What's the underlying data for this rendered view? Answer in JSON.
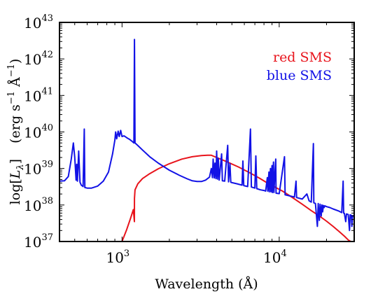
{
  "chart_data": {
    "type": "line",
    "title": "",
    "xlabel": "Wavelength (Å)",
    "ylabel": "log[L_λ]   (erg s⁻¹ Å⁻¹)",
    "ylabel_parts": {
      "main": "log[",
      "L": "L",
      "sub": "λ",
      "close": "]",
      "units": "(erg s",
      "exp1": "−1",
      "angstrom": " Å",
      "exp2": "−1",
      "units_close": ")"
    },
    "x_scale": "log",
    "y_scale": "log",
    "xlim": [
      400,
      30000
    ],
    "ylim": [
      1e+37,
      1e+43
    ],
    "x_ticks": [
      {
        "value": 1000,
        "base": "10",
        "exp": "3"
      },
      {
        "value": 10000,
        "base": "10",
        "exp": "4"
      }
    ],
    "y_ticks": [
      {
        "value": 1e+37,
        "base": "10",
        "exp": "37"
      },
      {
        "value": 1e+38,
        "base": "10",
        "exp": "38"
      },
      {
        "value": 1e+39,
        "base": "10",
        "exp": "39"
      },
      {
        "value": 1e+40,
        "base": "10",
        "exp": "40"
      },
      {
        "value": 1e+41,
        "base": "10",
        "exp": "41"
      },
      {
        "value": 1e+42,
        "base": "10",
        "exp": "42"
      },
      {
        "value": 1e+43,
        "base": "10",
        "exp": "43"
      }
    ],
    "grid": false,
    "legend_position": "top-right",
    "series": [
      {
        "name": "red SMS",
        "color": "#e8141c",
        "points": [
          [
            1000,
            1e+37
          ],
          [
            1070,
            2.1e+37
          ],
          [
            1130,
            4.2e+37
          ],
          [
            1180,
            7.5e+37
          ],
          [
            1198,
            3.5e+37
          ],
          [
            1200,
            1.5e+38
          ],
          [
            1210,
            2.6e+38
          ],
          [
            1260,
            3.8e+38
          ],
          [
            1350,
            5.3e+38
          ],
          [
            1500,
            7.2e+38
          ],
          [
            1700,
            9.8e+38
          ],
          [
            2000,
            1.35e+39
          ],
          [
            2400,
            1.8e+39
          ],
          [
            2800,
            2.1e+39
          ],
          [
            3200,
            2.25e+39
          ],
          [
            3500,
            2.3e+39
          ],
          [
            3700,
            2.3e+39
          ],
          [
            4000,
            2e+39
          ],
          [
            4600,
            1.55e+39
          ],
          [
            5500,
            1.1e+39
          ],
          [
            6500,
            7.6e+38
          ],
          [
            7500,
            5.4e+38
          ],
          [
            8500,
            3.9e+38
          ],
          [
            9500,
            3e+38
          ],
          [
            10500,
            2.4e+38
          ],
          [
            12000,
            1.65e+38
          ],
          [
            14000,
            1.05e+38
          ],
          [
            16000,
            7e+37
          ],
          [
            18000,
            5e+37
          ],
          [
            20000,
            3.6e+37
          ],
          [
            22000,
            2.6e+37
          ],
          [
            24000,
            1.9e+37
          ],
          [
            26000,
            1.4e+37
          ],
          [
            27500,
            1.1e+37
          ],
          [
            28500,
            1e+37
          ]
        ]
      },
      {
        "name": "blue SMS",
        "color": "#1212e6",
        "points": [
          [
            400,
            4.5e+38
          ],
          [
            430,
            4.6e+38
          ],
          [
            455,
            6e+38
          ],
          [
            475,
            1.8e+39
          ],
          [
            490,
            5e+39
          ],
          [
            500,
            2e+39
          ],
          [
            510,
            4.8e+38
          ],
          [
            515,
            1.3e+39
          ],
          [
            520,
            4.5e+38
          ],
          [
            530,
            3e+39
          ],
          [
            540,
            4.2e+38
          ],
          [
            550,
            3.5e+38
          ],
          [
            565,
            3.2e+38
          ],
          [
            575,
            1.2e+40
          ],
          [
            580,
            3e+38
          ],
          [
            600,
            2.9e+38
          ],
          [
            640,
            2.9e+38
          ],
          [
            700,
            3.3e+38
          ],
          [
            760,
            4.5e+38
          ],
          [
            820,
            8e+38
          ],
          [
            870,
            2.5e+39
          ],
          [
            900,
            6e+39
          ],
          [
            910,
            1e+40
          ],
          [
            925,
            6.5e+39
          ],
          [
            945,
            1.05e+40
          ],
          [
            960,
            7.5e+39
          ],
          [
            980,
            1.1e+40
          ],
          [
            1000,
            7.5e+39
          ],
          [
            1030,
            7.8e+39
          ],
          [
            1070,
            7e+39
          ],
          [
            1100,
            6.5e+39
          ],
          [
            1120,
            6.2e+39
          ],
          [
            1160,
            5.5e+39
          ],
          [
            1190,
            5e+39
          ],
          [
            1200,
            3.4e+42
          ],
          [
            1210,
            5e+39
          ],
          [
            1250,
            4.4e+39
          ],
          [
            1350,
            3.2e+39
          ],
          [
            1500,
            2.1e+39
          ],
          [
            1700,
            1.4e+39
          ],
          [
            2000,
            9e+38
          ],
          [
            2300,
            6.6e+38
          ],
          [
            2600,
            5.2e+38
          ],
          [
            2800,
            4.6e+38
          ],
          [
            3000,
            4.4e+38
          ],
          [
            3200,
            4.4e+38
          ],
          [
            3400,
            4.8e+38
          ],
          [
            3600,
            5.8e+38
          ],
          [
            3700,
            1e+39
          ],
          [
            3760,
            5.6e+38
          ],
          [
            3800,
            1.8e+39
          ],
          [
            3860,
            5.5e+38
          ],
          [
            3900,
            1.4e+39
          ],
          [
            3960,
            5.3e+38
          ],
          [
            4000,
            3e+39
          ],
          [
            4050,
            5.1e+38
          ],
          [
            4100,
            1.9e+39
          ],
          [
            4150,
            4.8e+38
          ],
          [
            4300,
            2.5e+39
          ],
          [
            4350,
            4.6e+38
          ],
          [
            4500,
            4.5e+38
          ],
          [
            4700,
            4.3e+39
          ],
          [
            4760,
            4.3e+38
          ],
          [
            4861,
            1.35e+39
          ],
          [
            4920,
            4.2e+38
          ],
          [
            5000,
            4.1e+38
          ],
          [
            5400,
            3.8e+38
          ],
          [
            5800,
            3.5e+38
          ],
          [
            5875,
            1.6e+39
          ],
          [
            5950,
            3.4e+38
          ],
          [
            6300,
            3.2e+38
          ],
          [
            6563,
            1.2e+40
          ],
          [
            6650,
            3.1e+38
          ],
          [
            7000,
            2.9e+38
          ],
          [
            7100,
            2.2e+39
          ],
          [
            7200,
            2.8e+38
          ],
          [
            7600,
            2.6e+38
          ],
          [
            8000,
            2.5e+38
          ],
          [
            8200,
            2.4e+38
          ],
          [
            8400,
            5.6e+38
          ],
          [
            8450,
            2.4e+38
          ],
          [
            8600,
            8e+38
          ],
          [
            8650,
            2.3e+38
          ],
          [
            8800,
            1e+39
          ],
          [
            8850,
            2.3e+38
          ],
          [
            9000,
            1.2e+39
          ],
          [
            9050,
            2.2e+38
          ],
          [
            9200,
            1.5e+39
          ],
          [
            9250,
            2.2e+38
          ],
          [
            9500,
            1.8e+39
          ],
          [
            9550,
            2.1e+38
          ],
          [
            10000,
            2.05e+38
          ],
          [
            10800,
            2.1e+39
          ],
          [
            10900,
            1.9e+38
          ],
          [
            11500,
            1.8e+38
          ],
          [
            12500,
            1.65e+38
          ],
          [
            12800,
            4.5e+38
          ],
          [
            12900,
            1.6e+38
          ],
          [
            14000,
            1.45e+38
          ],
          [
            15000,
            2e+38
          ],
          [
            15500,
            1.3e+38
          ],
          [
            16000,
            1.2e+38
          ],
          [
            16500,
            4.8e+39
          ],
          [
            16600,
            1.15e+38
          ],
          [
            17000,
            1.1e+38
          ],
          [
            17500,
            2.6e+37
          ],
          [
            17700,
            1.1e+38
          ],
          [
            18000,
            3.8e+37
          ],
          [
            18200,
            1.05e+38
          ],
          [
            18500,
            5e+37
          ],
          [
            18700,
            1e+38
          ],
          [
            18900,
            6.5e+37
          ],
          [
            19100,
            9.7e+37
          ],
          [
            19300,
            8.5e+37
          ],
          [
            19500,
            9.5e+37
          ],
          [
            20000,
            9e+37
          ],
          [
            21000,
            8.5e+37
          ],
          [
            22000,
            7.8e+37
          ],
          [
            24000,
            6.8e+37
          ],
          [
            25000,
            6.2e+37
          ],
          [
            25500,
            4.5e+38
          ],
          [
            25700,
            6e+37
          ],
          [
            26000,
            5.9e+37
          ],
          [
            26500,
            3.5e+37
          ],
          [
            26800,
            5.7e+37
          ],
          [
            27500,
            5.5e+37
          ],
          [
            28000,
            2e+37
          ],
          [
            28300,
            5.4e+37
          ],
          [
            28800,
            5.2e+37
          ],
          [
            29000,
            2.6e+37
          ],
          [
            29300,
            5.1e+37
          ],
          [
            30000,
            5e+37
          ]
        ]
      }
    ]
  }
}
